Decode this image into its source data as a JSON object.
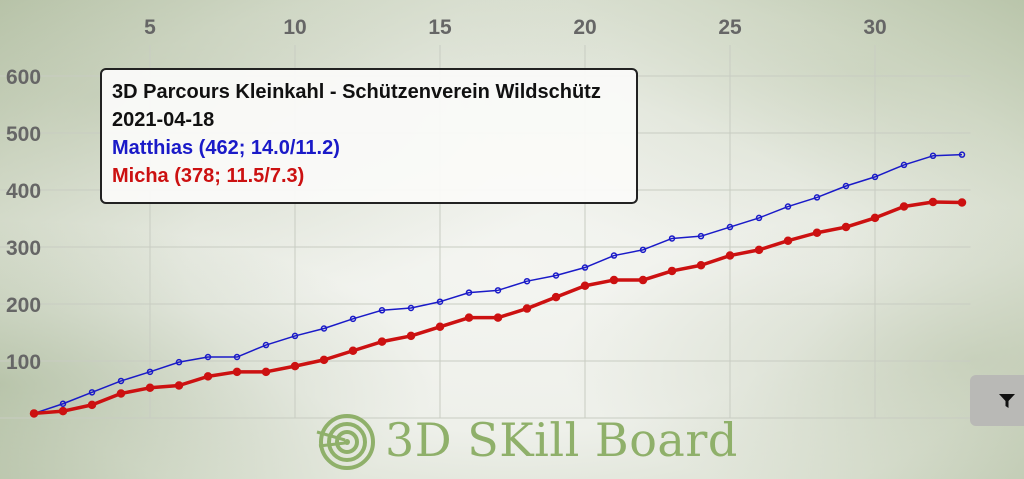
{
  "chart_data": {
    "type": "line",
    "title": "",
    "xlabel": "",
    "ylabel": "",
    "x": [
      1,
      2,
      3,
      4,
      5,
      6,
      7,
      8,
      9,
      10,
      11,
      12,
      13,
      14,
      15,
      16,
      17,
      18,
      19,
      20,
      21,
      22,
      23,
      24,
      25,
      26,
      27,
      28,
      29,
      30,
      31,
      32,
      33
    ],
    "xlim": [
      0,
      33.5
    ],
    "ylim": [
      -5,
      610
    ],
    "x_ticks": [
      5,
      10,
      15,
      20,
      25,
      30
    ],
    "y_ticks": [
      100,
      200,
      300,
      400,
      500,
      600
    ],
    "x_axis_position": "top",
    "grid": true,
    "series": [
      {
        "name": "Matthias",
        "color": "#1a1ac8",
        "values": [
          8,
          25,
          45,
          65,
          81,
          98,
          107,
          107,
          128,
          144,
          157,
          174,
          189,
          193,
          204,
          220,
          224,
          240,
          250,
          264,
          285,
          295,
          315,
          319,
          335,
          351,
          371,
          387,
          407,
          423,
          444,
          460,
          462
        ]
      },
      {
        "name": "Micha",
        "color": "#cc1111",
        "values": [
          8,
          12,
          23,
          43,
          53,
          57,
          73,
          81,
          81,
          91,
          102,
          118,
          134,
          144,
          160,
          176,
          176,
          192,
          212,
          232,
          242,
          242,
          258,
          268,
          285,
          295,
          311,
          325,
          335,
          351,
          371,
          379,
          378
        ]
      }
    ]
  },
  "tooltip": {
    "title": "3D Parcours Kleinkahl - Schützenverein Wildschütz",
    "date": "2021-04-18",
    "lines": [
      "Matthias (462; 14.0/11.2)",
      "Micha (378; 11.5/7.3)"
    ]
  },
  "logo": {
    "text": "3D SKill Board"
  },
  "filter_button": {
    "icon": "filter-icon"
  }
}
